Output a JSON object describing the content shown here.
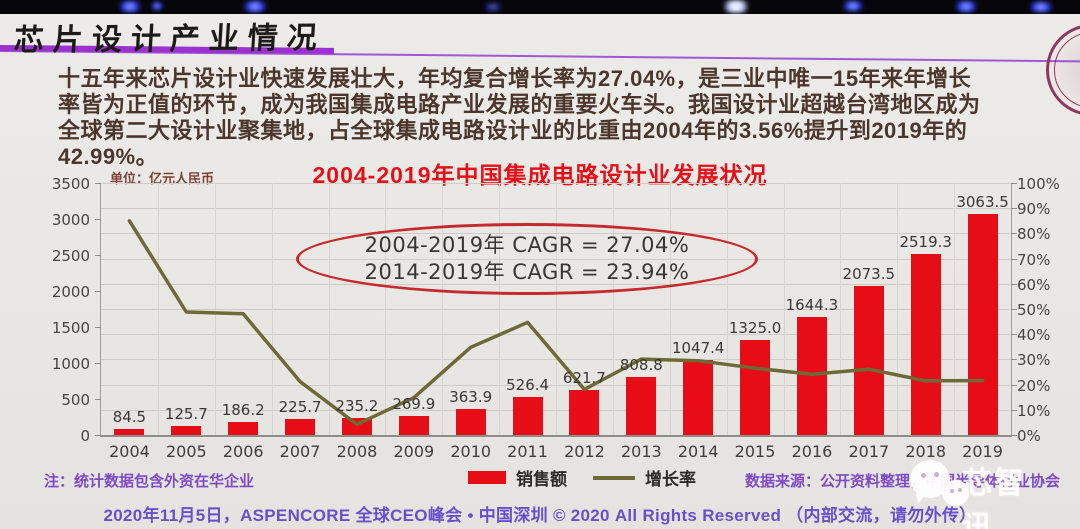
{
  "slide": {
    "title": "芯片设计产业情况",
    "paragraph_lines": [
      "十五年来芯片设计业快速发展壮大，年均复合增长率为27.04%，是三业中唯一15年来年增长",
      "率皆为正值的环节，成为我国集成电路产业发展的重要火车头。我国设计业超越台湾地区成为",
      "全球第二大设计业聚集地，占全球集成电路设计业的比重由2004年的3.56%提升到2019年的",
      "42.99%。"
    ],
    "unit_label": "单位：亿元人民币",
    "annotation_lines": [
      "2004-2019年  CAGR = 27.04%",
      "2014-2019年  CAGR = 23.94%"
    ],
    "note_left": "注：统计数据包含外资在华企业",
    "source_right": "数据来源：公开资料整理，中国半导体行业协会",
    "watermark_text": "芯智讯",
    "footer": "2020年11月5日，ASPENCORE 全球CEO峰会 • 中国深圳 © 2020 All Rights Reserved （内部交流，请勿外传）"
  },
  "chart_data": {
    "type": "bar",
    "title": "2004-2019年中国集成电路设计业发展状况",
    "unit": "亿元人民币",
    "categories": [
      "2004",
      "2005",
      "2006",
      "2007",
      "2008",
      "2009",
      "2010",
      "2011",
      "2012",
      "2013",
      "2014",
      "2015",
      "2016",
      "2017",
      "2018",
      "2019"
    ],
    "series": [
      {
        "name": "销售额",
        "type": "bar",
        "axis": "left",
        "color": "#e60d17",
        "values": [
          84.5,
          125.7,
          186.2,
          225.7,
          235.2,
          269.9,
          363.9,
          526.4,
          621.7,
          808.8,
          1047.4,
          1325.0,
          1644.3,
          2073.5,
          2519.3,
          3063.5
        ],
        "value_labels": [
          "84.5",
          "125.7",
          "186.2",
          "225.7",
          "235.2",
          "269.9",
          "363.9",
          "526.4",
          "621.7",
          "808.8",
          "1047.4",
          "1325.0",
          "1644.3",
          "2073.5",
          "2519.3",
          "3063.5"
        ]
      },
      {
        "name": "增长率",
        "type": "line",
        "axis": "right",
        "color": "#6e6a38",
        "estimated": true,
        "values": [
          85,
          48.8,
          48.1,
          21.2,
          4.2,
          14.8,
          34.8,
          44.7,
          18.1,
          30.1,
          29.5,
          26.5,
          24.1,
          26.1,
          21.5,
          21.6
        ]
      }
    ],
    "left_axis": {
      "min": 0,
      "max": 3500,
      "ticks": [
        "3500",
        "3000",
        "2500",
        "2000",
        "1500",
        "1000",
        "500",
        "0"
      ]
    },
    "right_axis": {
      "min": 0,
      "max": 100,
      "ticks": [
        "100%",
        "90%",
        "80%",
        "70%",
        "60%",
        "50%",
        "40%",
        "30%",
        "20%",
        "10%",
        "0%"
      ]
    },
    "grid": true,
    "legend_position": "bottom"
  }
}
